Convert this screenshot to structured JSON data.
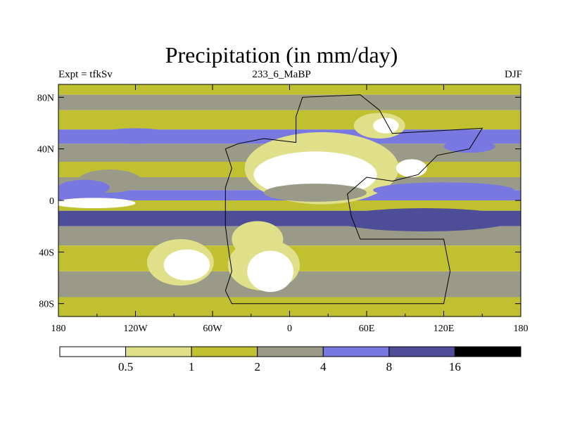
{
  "chart_data": {
    "type": "heatmap",
    "title": "Precipitation (in mm/day)",
    "left_string": "Expt = tfkSv",
    "center_string": "233_6_MaBP",
    "right_string": "DJF",
    "x_ticks": [
      {
        "value": -180,
        "label": "180"
      },
      {
        "value": -120,
        "label": "120W"
      },
      {
        "value": -60,
        "label": "60W"
      },
      {
        "value": 0,
        "label": "0"
      },
      {
        "value": 60,
        "label": "60E"
      },
      {
        "value": 120,
        "label": "120E"
      },
      {
        "value": 180,
        "label": "180"
      }
    ],
    "y_ticks": [
      {
        "value": 80,
        "label": "80N"
      },
      {
        "value": 40,
        "label": "40N"
      },
      {
        "value": 0,
        "label": "0"
      },
      {
        "value": -40,
        "label": "40S"
      },
      {
        "value": -80,
        "label": "80S"
      }
    ],
    "xlim": [
      -180,
      180
    ],
    "ylim": [
      -90,
      90
    ],
    "contour_levels": [
      "0.5",
      "1",
      "2",
      "4",
      "8",
      "16"
    ],
    "colors": [
      "#ffffff",
      "#e0e08a",
      "#c0c030",
      "#9a9a88",
      "#7878e0",
      "#4e4e98",
      "#000000"
    ],
    "bands": [
      {
        "lat": [
          82,
          90
        ],
        "bin": 2
      },
      {
        "lat": [
          70,
          82
        ],
        "bin": 3
      },
      {
        "lat": [
          55,
          70
        ],
        "bin": 2
      },
      {
        "lat": [
          44,
          55
        ],
        "bin": 4
      },
      {
        "lat": [
          30,
          44
        ],
        "bin": 3
      },
      {
        "lat": [
          18,
          30
        ],
        "bin": 2
      },
      {
        "lat": [
          8,
          18
        ],
        "bin": 3
      },
      {
        "lat": [
          0,
          8
        ],
        "bin": 4
      },
      {
        "lat": [
          -8,
          0
        ],
        "bin": 2
      },
      {
        "lat": [
          -20,
          -8
        ],
        "bin": 5
      },
      {
        "lat": [
          -35,
          -20
        ],
        "bin": 3
      },
      {
        "lat": [
          -55,
          -35
        ],
        "bin": 2
      },
      {
        "lat": [
          -75,
          -55
        ],
        "bin": 3
      },
      {
        "lat": [
          -90,
          -75
        ],
        "bin": 2
      }
    ],
    "patches": [
      {
        "lon": -152,
        "lat": -2,
        "rx": 32,
        "ry": 4,
        "bin": 0
      },
      {
        "lon": -140,
        "lat": 15,
        "rx": 25,
        "ry": 9,
        "bin": 3
      },
      {
        "lon": -160,
        "lat": 10,
        "rx": 20,
        "ry": 6,
        "bin": 4
      },
      {
        "lon": 25,
        "lat": 25,
        "rx": 60,
        "ry": 28,
        "bin": 1
      },
      {
        "lon": 20,
        "lat": 20,
        "rx": 48,
        "ry": 18,
        "bin": 0
      },
      {
        "lon": -25,
        "lat": -30,
        "rx": 20,
        "ry": 14,
        "bin": 1
      },
      {
        "lon": -20,
        "lat": -50,
        "rx": 28,
        "ry": 20,
        "bin": 1
      },
      {
        "lon": -15,
        "lat": -55,
        "rx": 18,
        "ry": 16,
        "bin": 0
      },
      {
        "lon": -85,
        "lat": -48,
        "rx": 26,
        "ry": 18,
        "bin": 1
      },
      {
        "lon": -80,
        "lat": -50,
        "rx": 18,
        "ry": 12,
        "bin": 0
      },
      {
        "lon": 95,
        "lat": 25,
        "rx": 12,
        "ry": 7,
        "bin": 0
      },
      {
        "lon": 70,
        "lat": 58,
        "rx": 20,
        "ry": 10,
        "bin": 1
      },
      {
        "lon": 75,
        "lat": 58,
        "rx": 10,
        "ry": 6,
        "bin": 0
      },
      {
        "lon": 105,
        "lat": -15,
        "rx": 70,
        "ry": 9,
        "bin": 5
      },
      {
        "lon": 20,
        "lat": 6,
        "rx": 40,
        "ry": 7,
        "bin": 3
      },
      {
        "lon": 120,
        "lat": 8,
        "rx": 55,
        "ry": 6,
        "bin": 4
      },
      {
        "lon": -120,
        "lat": 50,
        "rx": 30,
        "ry": 6,
        "bin": 4
      },
      {
        "lon": 140,
        "lat": 42,
        "rx": 20,
        "ry": 5,
        "bin": 4
      }
    ],
    "outline_lonlat": [
      [
        -50,
        10
      ],
      [
        -45,
        25
      ],
      [
        -50,
        40
      ],
      [
        -40,
        44
      ],
      [
        -20,
        48
      ],
      [
        5,
        45
      ],
      [
        5,
        65
      ],
      [
        10,
        80
      ],
      [
        55,
        82
      ],
      [
        70,
        70
      ],
      [
        80,
        52
      ],
      [
        150,
        56
      ],
      [
        140,
        40
      ],
      [
        115,
        35
      ],
      [
        100,
        20
      ],
      [
        80,
        15
      ],
      [
        60,
        18
      ],
      [
        45,
        5
      ],
      [
        48,
        -12
      ],
      [
        55,
        -30
      ],
      [
        120,
        -30
      ],
      [
        125,
        -55
      ],
      [
        120,
        -80
      ],
      [
        -45,
        -80
      ],
      [
        -50,
        -70
      ],
      [
        -45,
        -55
      ],
      [
        -48,
        -35
      ],
      [
        -50,
        -20
      ],
      [
        -50,
        10
      ]
    ]
  }
}
